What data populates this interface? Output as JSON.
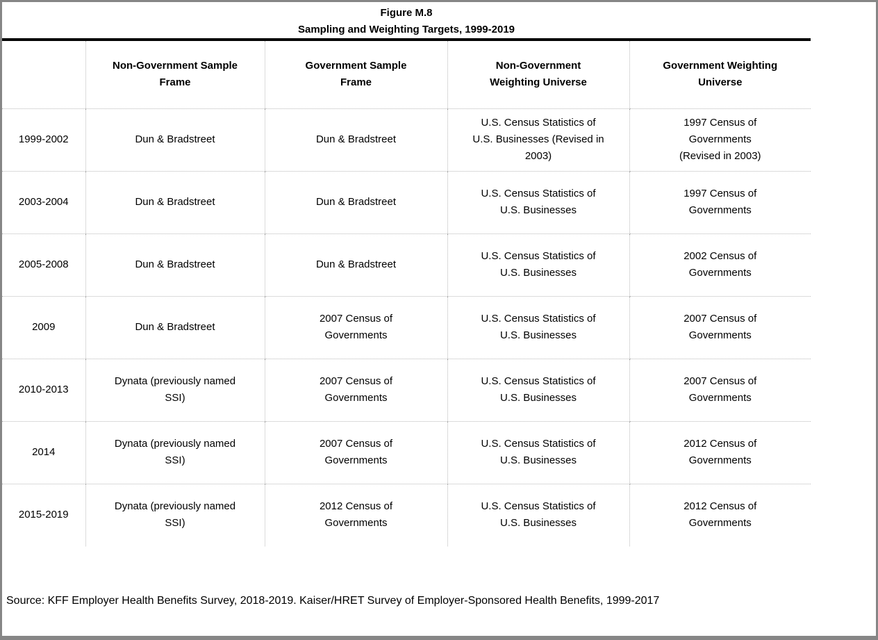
{
  "page": {
    "title_line1": "Figure M.8",
    "title_line2": "Sampling and Weighting Targets, 1999-2019",
    "source": "Source: KFF Employer Health Benefits Survey, 2018-2019. Kaiser/HRET Survey of Employer-Sponsored Health Benefits, 1999-2017"
  },
  "colors": {
    "page_border": "#868686",
    "grid_dotted": "#b8b8b8",
    "title_rule": "#000000",
    "text": "#000000",
    "background": "#ffffff"
  },
  "table": {
    "column_headers": [
      "",
      "Non-Government Sample\nFrame",
      "Government Sample\nFrame",
      "Non-Government\nWeighting Universe",
      "Government Weighting\nUniverse"
    ],
    "rows": [
      {
        "years": "1999-2002",
        "cells": [
          "Dun & Bradstreet",
          "Dun & Bradstreet",
          "U.S. Census Statistics of\nU.S. Businesses (Revised in\n2003)",
          "1997 Census of\nGovernments\n(Revised in 2003)"
        ]
      },
      {
        "years": "2003-2004",
        "cells": [
          "Dun & Bradstreet",
          "Dun & Bradstreet",
          "U.S. Census Statistics of\nU.S. Businesses",
          "1997 Census of\nGovernments"
        ]
      },
      {
        "years": "2005-2008",
        "cells": [
          "Dun & Bradstreet",
          "Dun & Bradstreet",
          "U.S. Census Statistics of\nU.S. Businesses",
          "2002 Census of\nGovernments"
        ]
      },
      {
        "years": "2009",
        "cells": [
          "Dun & Bradstreet",
          "2007 Census of\nGovernments",
          "U.S. Census Statistics of\nU.S. Businesses",
          "2007 Census of\nGovernments"
        ]
      },
      {
        "years": "2010-2013",
        "cells": [
          "Dynata (previously named\nSSI)",
          "2007 Census of\nGovernments",
          "U.S. Census Statistics of\nU.S. Businesses",
          "2007 Census of\nGovernments"
        ]
      },
      {
        "years": "2014",
        "cells": [
          "Dynata (previously named\nSSI)",
          "2007 Census of\nGovernments",
          "U.S. Census Statistics of\nU.S. Businesses",
          "2012 Census of\nGovernments"
        ]
      },
      {
        "years": "2015-2019",
        "cells": [
          "Dynata (previously named\nSSI)",
          "2012 Census of\nGovernments",
          "U.S. Census Statistics of\nU.S. Businesses",
          "2012 Census of\nGovernments"
        ]
      }
    ]
  }
}
